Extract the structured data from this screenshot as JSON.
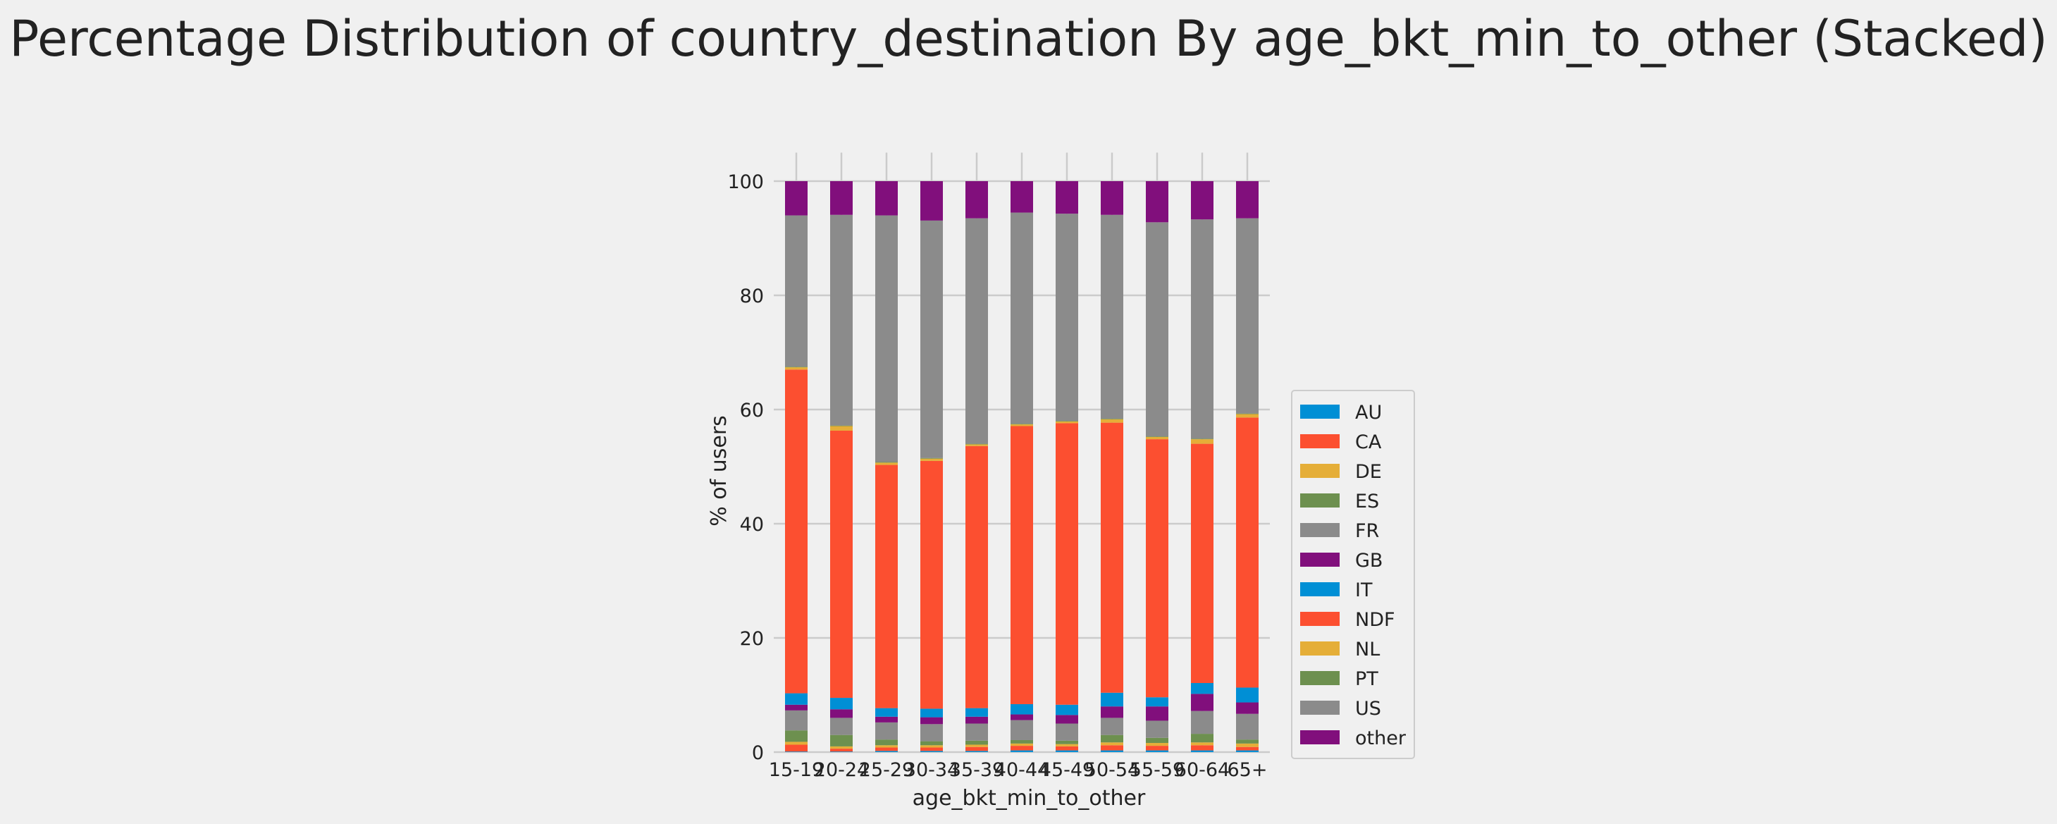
{
  "chart_data": {
    "type": "bar",
    "stacked": true,
    "title": "Percentage Distribution of country_destination By age_bkt_min_to_other (Stacked)",
    "xlabel": "age_bkt_min_to_other",
    "ylabel": "% of users",
    "ylim": [
      0,
      105
    ],
    "yticks": [
      0,
      20,
      40,
      60,
      80,
      100
    ],
    "grid": true,
    "legend_position": "right",
    "categories": [
      "15-19",
      "20-24",
      "25-29",
      "30-34",
      "35-39",
      "40-44",
      "45-49",
      "50-54",
      "55-59",
      "60-64",
      "65+"
    ],
    "series": [
      {
        "name": "AU",
        "color": "#008fd5",
        "values": [
          0.1,
          0.1,
          0.2,
          0.2,
          0.2,
          0.3,
          0.3,
          0.3,
          0.3,
          0.3,
          0.3
        ]
      },
      {
        "name": "CA",
        "color": "#fc4f30",
        "values": [
          1.2,
          0.5,
          0.6,
          0.6,
          0.7,
          0.8,
          0.7,
          0.9,
          0.8,
          0.9,
          0.6
        ]
      },
      {
        "name": "DE",
        "color": "#e5ae38",
        "values": [
          0.5,
          0.4,
          0.4,
          0.4,
          0.4,
          0.4,
          0.4,
          0.5,
          0.5,
          0.5,
          0.6
        ]
      },
      {
        "name": "ES",
        "color": "#6d904f",
        "values": [
          2.0,
          2.0,
          1.0,
          0.7,
          0.7,
          0.6,
          0.6,
          1.3,
          0.9,
          1.5,
          0.7
        ]
      },
      {
        "name": "FR",
        "color": "#8b8b8b",
        "values": [
          3.5,
          3.0,
          3.0,
          3.0,
          3.0,
          3.5,
          3.0,
          3.0,
          3.0,
          4.0,
          4.5
        ]
      },
      {
        "name": "GB",
        "color": "#810f7c",
        "values": [
          1.0,
          1.5,
          1.0,
          1.2,
          1.2,
          1.0,
          1.5,
          2.0,
          2.5,
          3.0,
          2.0
        ]
      },
      {
        "name": "IT",
        "color": "#008fd5",
        "values": [
          2.0,
          2.0,
          1.5,
          1.5,
          1.5,
          1.8,
          1.8,
          2.4,
          1.6,
          1.9,
          2.6
        ]
      },
      {
        "name": "NDF",
        "color": "#fc4f30",
        "values": [
          56.7,
          46.8,
          42.6,
          43.4,
          45.9,
          48.7,
          49.3,
          47.3,
          45.2,
          41.9,
          47.3
        ]
      },
      {
        "name": "NL",
        "color": "#e5ae38",
        "values": [
          0.4,
          0.8,
          0.4,
          0.4,
          0.3,
          0.3,
          0.3,
          0.6,
          0.4,
          0.8,
          0.6
        ]
      },
      {
        "name": "PT",
        "color": "#6d904f",
        "values": [
          0.1,
          0.1,
          0.1,
          0.1,
          0.1,
          0.1,
          0.1,
          0.1,
          0.1,
          0.1,
          0.1
        ]
      },
      {
        "name": "US",
        "color": "#8b8b8b",
        "values": [
          26.5,
          36.9,
          43.2,
          41.6,
          39.5,
          37.0,
          36.3,
          35.7,
          37.5,
          38.4,
          34.2
        ]
      },
      {
        "name": "other",
        "color": "#810f7c",
        "values": [
          6.0,
          5.9,
          6.0,
          6.9,
          6.5,
          5.5,
          5.7,
          5.9,
          7.2,
          6.7,
          6.5
        ]
      }
    ]
  }
}
